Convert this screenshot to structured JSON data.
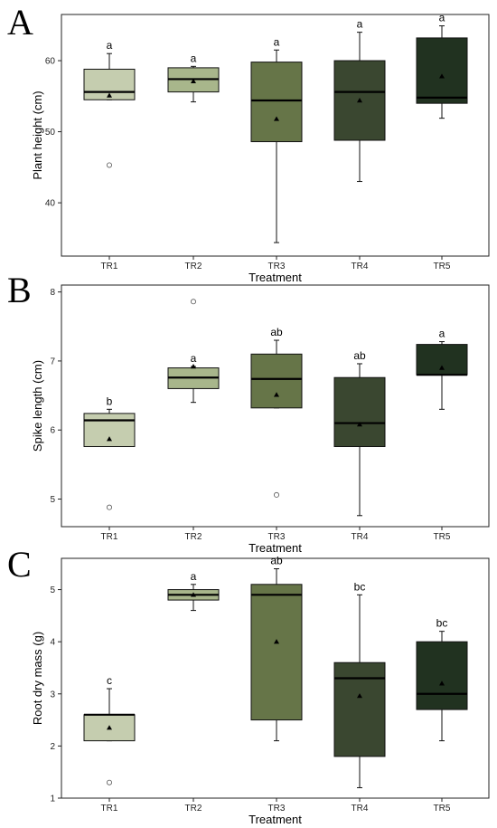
{
  "chart_data": [
    {
      "type": "box",
      "panel_label": "A",
      "xlabel": "Treatment",
      "ylabel": "Plant height (cm)",
      "ylim": [
        32.5,
        66.5
      ],
      "yticks": [
        40,
        50,
        60
      ],
      "categories": [
        "TR1",
        "TR2",
        "TR3",
        "TR4",
        "TR5"
      ],
      "colors": [
        "#c5cdaf",
        "#a8b68b",
        "#667548",
        "#3a4730",
        "#213220"
      ],
      "boxes": [
        {
          "whisker_low": 54.5,
          "q1": 54.5,
          "median": 55.6,
          "q3": 58.8,
          "whisker_high": 61.0,
          "mean": 55.1,
          "outliers": [
            45.3
          ],
          "letter": "a"
        },
        {
          "whisker_low": 54.2,
          "q1": 55.6,
          "median": 57.4,
          "q3": 59.0,
          "whisker_high": 59.2,
          "mean": 57.1,
          "outliers": [],
          "letter": "a"
        },
        {
          "whisker_low": 34.4,
          "q1": 48.6,
          "median": 54.4,
          "q3": 59.8,
          "whisker_high": 61.5,
          "mean": 51.8,
          "outliers": [],
          "letter": "a"
        },
        {
          "whisker_low": 43.0,
          "q1": 48.8,
          "median": 55.6,
          "q3": 60.0,
          "whisker_high": 64.0,
          "mean": 54.4,
          "outliers": [],
          "letter": "a"
        },
        {
          "whisker_low": 51.9,
          "q1": 54.0,
          "median": 54.8,
          "q3": 63.2,
          "whisker_high": 64.9,
          "mean": 57.8,
          "outliers": [],
          "letter": "a"
        }
      ]
    },
    {
      "type": "box",
      "panel_label": "B",
      "xlabel": "Treatment",
      "ylabel": "Spike length (cm)",
      "ylim": [
        4.6,
        8.1
      ],
      "yticks": [
        5,
        6,
        7,
        8
      ],
      "categories": [
        "TR1",
        "TR2",
        "TR3",
        "TR4",
        "TR5"
      ],
      "colors": [
        "#c5cdaf",
        "#a8b68b",
        "#667548",
        "#3a4730",
        "#213220"
      ],
      "boxes": [
        {
          "whisker_low": 5.76,
          "q1": 5.76,
          "median": 6.14,
          "q3": 6.24,
          "whisker_high": 6.3,
          "mean": 5.87,
          "outliers": [
            4.88
          ],
          "letter": "b"
        },
        {
          "whisker_low": 6.4,
          "q1": 6.6,
          "median": 6.76,
          "q3": 6.9,
          "whisker_high": 6.92,
          "mean": 6.92,
          "outliers": [
            7.86
          ],
          "letter": "a"
        },
        {
          "whisker_low": 6.32,
          "q1": 6.32,
          "median": 6.74,
          "q3": 7.1,
          "whisker_high": 7.3,
          "mean": 6.51,
          "outliers": [
            5.06
          ],
          "letter": "ab"
        },
        {
          "whisker_low": 4.76,
          "q1": 5.76,
          "median": 6.1,
          "q3": 6.76,
          "whisker_high": 6.96,
          "mean": 6.08,
          "outliers": [],
          "letter": "ab"
        },
        {
          "whisker_low": 6.3,
          "q1": 6.8,
          "median": 6.8,
          "q3": 7.24,
          "whisker_high": 7.28,
          "mean": 6.9,
          "outliers": [],
          "letter": "a"
        }
      ]
    },
    {
      "type": "box",
      "panel_label": "C",
      "xlabel": "Treatment",
      "ylabel": "Root dry mass (g)",
      "ylim": [
        1.0,
        5.6
      ],
      "yticks": [
        1,
        2,
        3,
        4,
        5
      ],
      "categories": [
        "TR1",
        "TR2",
        "TR3",
        "TR4",
        "TR5"
      ],
      "colors": [
        "#c5cdaf",
        "#a8b68b",
        "#667548",
        "#3a4730",
        "#213220"
      ],
      "boxes": [
        {
          "whisker_low": 2.1,
          "q1": 2.1,
          "median": 2.6,
          "q3": 2.6,
          "whisker_high": 3.1,
          "mean": 2.35,
          "outliers": [
            1.3
          ],
          "letter": "c"
        },
        {
          "whisker_low": 4.6,
          "q1": 4.8,
          "median": 4.9,
          "q3": 5.0,
          "whisker_high": 5.1,
          "mean": 4.9,
          "outliers": [],
          "letter": "a"
        },
        {
          "whisker_low": 2.1,
          "q1": 2.5,
          "median": 4.9,
          "q3": 5.1,
          "whisker_high": 5.4,
          "mean": 4.0,
          "outliers": [],
          "letter": "ab"
        },
        {
          "whisker_low": 1.2,
          "q1": 1.8,
          "median": 3.3,
          "q3": 3.6,
          "whisker_high": 4.9,
          "mean": 2.96,
          "outliers": [],
          "letter": "bc"
        },
        {
          "whisker_low": 2.1,
          "q1": 2.7,
          "median": 3.0,
          "q3": 4.0,
          "whisker_high": 4.2,
          "mean": 3.2,
          "outliers": [],
          "letter": "bc"
        }
      ]
    }
  ]
}
